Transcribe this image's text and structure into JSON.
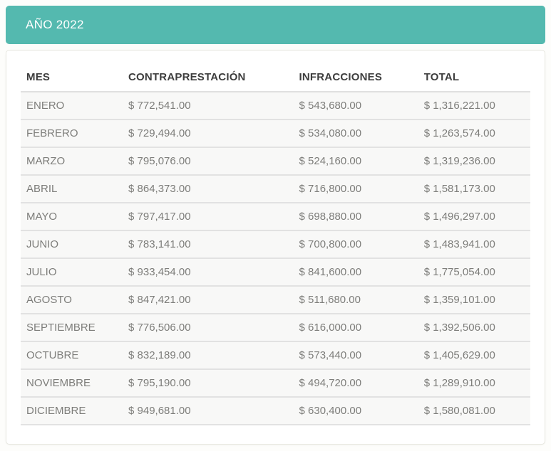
{
  "banner": {
    "title": "AÑO 2022",
    "bg_color": "#54b9af",
    "text_color": "#ffffff"
  },
  "table": {
    "columns": [
      "MES",
      "CONTRAPRESTACIÓN",
      "INFRACCIONES",
      "TOTAL"
    ],
    "rows": [
      {
        "mes": "ENERO",
        "contraprestacion": "$ 772,541.00",
        "infracciones": "$ 543,680.00",
        "total": "$ 1,316,221.00"
      },
      {
        "mes": "FEBRERO",
        "contraprestacion": "$ 729,494.00",
        "infracciones": "$ 534,080.00",
        "total": "$ 1,263,574.00"
      },
      {
        "mes": "MARZO",
        "contraprestacion": "$ 795,076.00",
        "infracciones": "$ 524,160.00",
        "total": "$ 1,319,236.00"
      },
      {
        "mes": "ABRIL",
        "contraprestacion": "$ 864,373.00",
        "infracciones": "$ 716,800.00",
        "total": "$ 1,581,173.00"
      },
      {
        "mes": "MAYO",
        "contraprestacion": "$ 797,417.00",
        "infracciones": "$ 698,880.00",
        "total": "$ 1,496,297.00"
      },
      {
        "mes": "JUNIO",
        "contraprestacion": "$ 783,141.00",
        "infracciones": "$ 700,800.00",
        "total": "$ 1,483,941.00"
      },
      {
        "mes": "JULIO",
        "contraprestacion": "$ 933,454.00",
        "infracciones": "$ 841,600.00",
        "total": "$ 1,775,054.00"
      },
      {
        "mes": "AGOSTO",
        "contraprestacion": "$ 847,421.00",
        "infracciones": "$ 511,680.00",
        "total": "$ 1,359,101.00"
      },
      {
        "mes": "SEPTIEMBRE",
        "contraprestacion": "$ 776,506.00",
        "infracciones": "$ 616,000.00",
        "total": "$ 1,392,506.00"
      },
      {
        "mes": "OCTUBRE",
        "contraprestacion": "$ 832,189.00",
        "infracciones": "$ 573,440.00",
        "total": "$ 1,405,629.00"
      },
      {
        "mes": "NOVIEMBRE",
        "contraprestacion": "$ 795,190.00",
        "infracciones": "$ 494,720.00",
        "total": "$ 1,289,910.00"
      },
      {
        "mes": "DICIEMBRE",
        "contraprestacion": "$ 949,681.00",
        "infracciones": "$ 630,400.00",
        "total": "$ 1,580,081.00"
      }
    ]
  }
}
